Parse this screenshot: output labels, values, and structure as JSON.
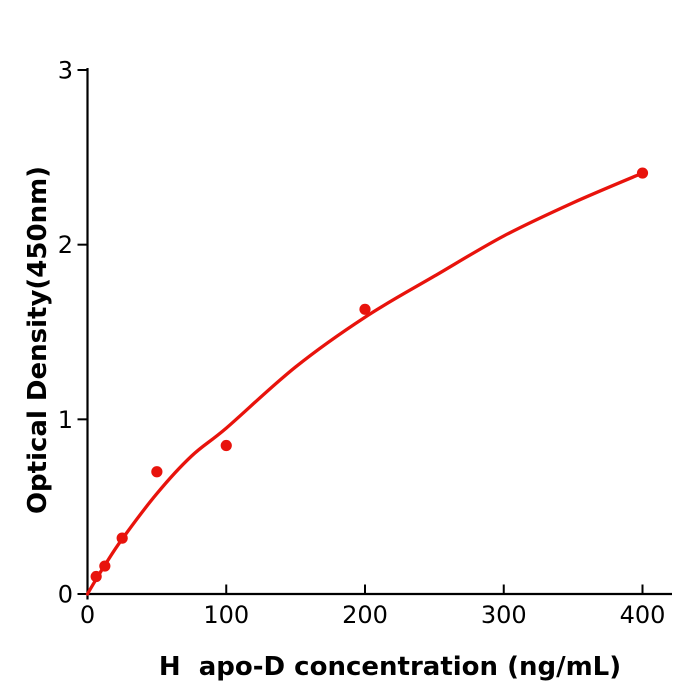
{
  "figure": {
    "background": "#ffffff"
  },
  "chart_data": {
    "type": "scatter",
    "title": "",
    "xlabel": "H  apo-D concentration (ng/mL)",
    "ylabel": "Optical Density(450nm)",
    "x_ticks": [
      0,
      100,
      200,
      300,
      400
    ],
    "y_ticks": [
      0,
      1,
      2,
      3
    ],
    "xlim": [
      0,
      422
    ],
    "ylim": [
      0,
      3.01
    ],
    "grid": false,
    "legend": "none",
    "point_color": "#e8130c",
    "line_color": "#e8130c",
    "axis_color": "#000000",
    "points": [
      {
        "x": 6.25,
        "y": 0.1
      },
      {
        "x": 12.5,
        "y": 0.16
      },
      {
        "x": 25,
        "y": 0.32
      },
      {
        "x": 50,
        "y": 0.7
      },
      {
        "x": 100,
        "y": 0.85
      },
      {
        "x": 200,
        "y": 1.63
      },
      {
        "x": 400,
        "y": 2.41
      }
    ],
    "fit_curve": [
      [
        0,
        0.0
      ],
      [
        6.25,
        0.085
      ],
      [
        12.5,
        0.165
      ],
      [
        25,
        0.315
      ],
      [
        50,
        0.575
      ],
      [
        75,
        0.79
      ],
      [
        100,
        0.95
      ],
      [
        150,
        1.3
      ],
      [
        200,
        1.585
      ],
      [
        250,
        1.82
      ],
      [
        300,
        2.05
      ],
      [
        350,
        2.24
      ],
      [
        400,
        2.41
      ]
    ]
  }
}
